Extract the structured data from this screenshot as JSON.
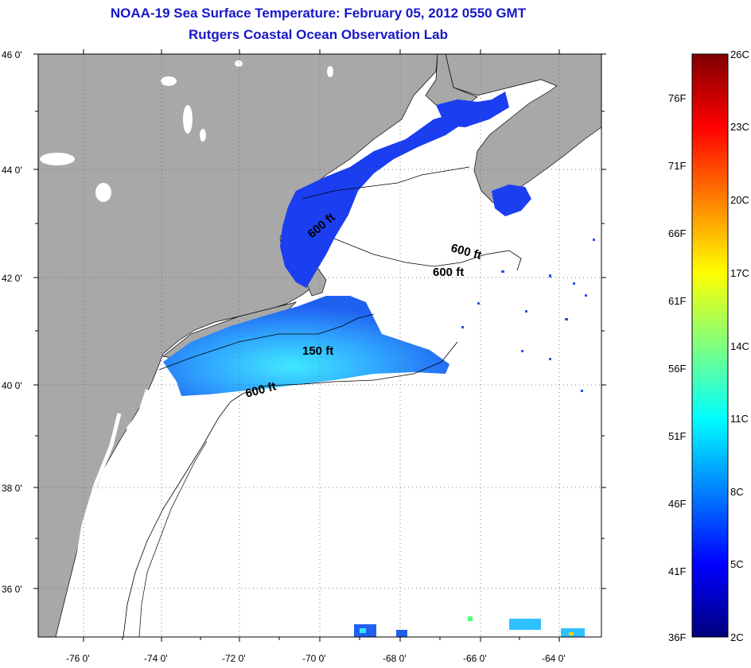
{
  "title": "NOAA-19 Sea Surface Temperature:  February 05, 2012 0550 GMT",
  "subtitle": "Rutgers Coastal Ocean Observation Lab",
  "latitude_labels": [
    "46 0'",
    "44 0'",
    "42 0'",
    "40 0'",
    "38 0'",
    "36 0'"
  ],
  "longitude_labels": [
    "-76 0'",
    "-74 0'",
    "-72 0'",
    "-70 0'",
    "-68 0'",
    "-66 0'",
    "-64 0'"
  ],
  "contour_labels": [
    "600 ft",
    "600 ft",
    "600 ft",
    "150 ft",
    "600 ft"
  ],
  "colorbar": {
    "fahrenheit_labels": [
      "76F",
      "71F",
      "66F",
      "61F",
      "56F",
      "51F",
      "46F",
      "41F",
      "36F"
    ],
    "celsius_labels": [
      "26C",
      "23C",
      "20C",
      "17C",
      "14C",
      "11C",
      "8C",
      "5C",
      "2C"
    ]
  },
  "colors": {
    "title": "#1818c8",
    "land": "#a8a8a8",
    "ocean": "#ffffff",
    "sst_cold": "#1030e0",
    "sst_cool": "#30a0ff",
    "sst_mild": "#40e0ff"
  }
}
